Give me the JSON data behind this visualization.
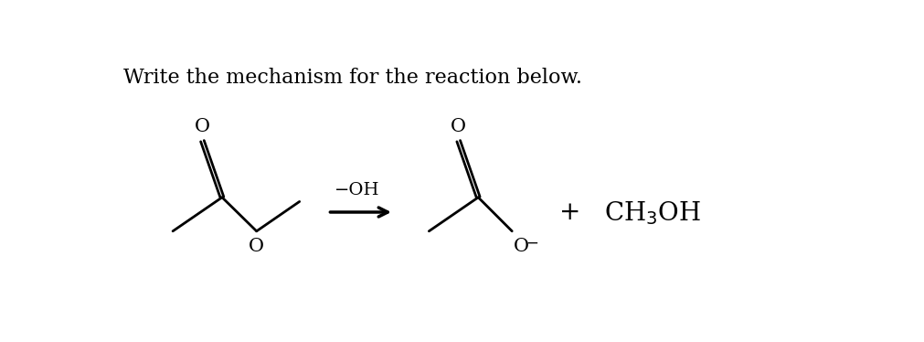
{
  "title": "Write the mechanism for the reaction below.",
  "title_fontsize": 16,
  "title_fontfamily": "DejaVu Serif",
  "bg_color": "#ffffff",
  "line_color": "#000000",
  "line_width": 2.0,
  "o_label": "O",
  "o_minus_label": "O",
  "minus_label": "−",
  "reagent_label": "−OH",
  "plus_label": "+",
  "ch3oh_label": "CH$_3$OH"
}
